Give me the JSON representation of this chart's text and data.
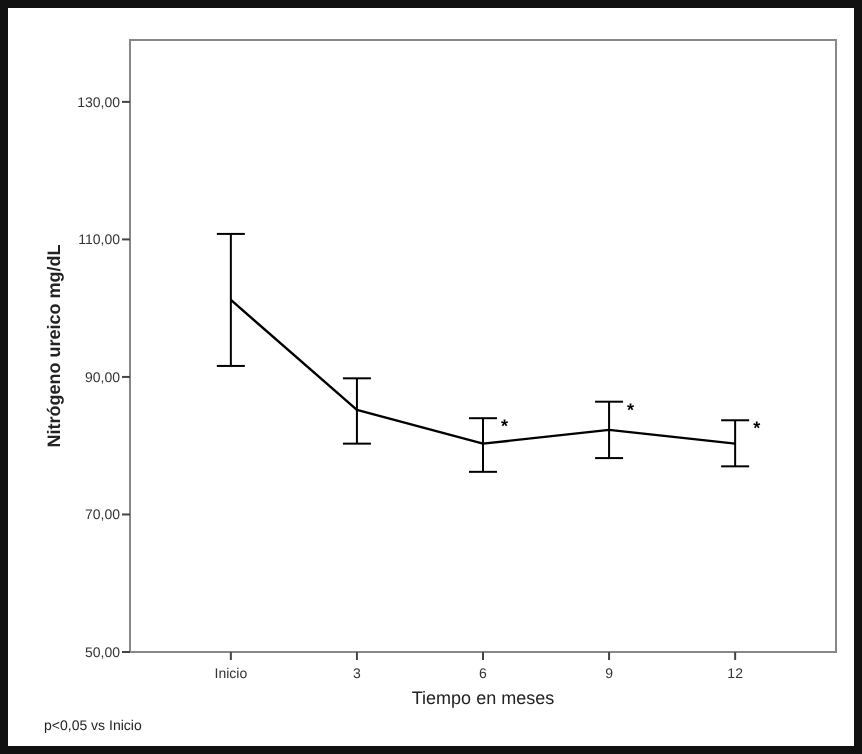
{
  "chart_data": {
    "type": "line",
    "xlabel": "Tiempo en meses",
    "ylabel": "Nitrógeno ureico mg/dL",
    "categories": [
      "Inicio",
      "3",
      "6",
      "9",
      "12"
    ],
    "series": [
      {
        "color": "#000000",
        "values": [
          101.2,
          85.2,
          80.3,
          82.3,
          80.3
        ],
        "errors": [
          [
            91.6,
            110.8
          ],
          [
            80.3,
            89.8
          ],
          [
            76.2,
            84.0
          ],
          [
            78.2,
            86.4
          ],
          [
            77.0,
            83.7
          ]
        ]
      }
    ],
    "ylim": [
      50,
      139
    ],
    "yticks": [
      {
        "value": 50,
        "label": "50,00"
      },
      {
        "value": 70,
        "label": "70,00"
      },
      {
        "value": 90,
        "label": "90,00"
      },
      {
        "value": 110,
        "label": "110,00"
      },
      {
        "value": 130,
        "label": "130,00"
      }
    ],
    "marker": "none",
    "line_style": "solid",
    "annotations": [
      {
        "text": "*",
        "x": "6",
        "y": 84.0
      },
      {
        "text": "*",
        "x": "9",
        "y": 86.4
      },
      {
        "text": "*",
        "x": "12",
        "y": 83.7
      },
      "p<0,05 vs Inicio"
    ]
  }
}
